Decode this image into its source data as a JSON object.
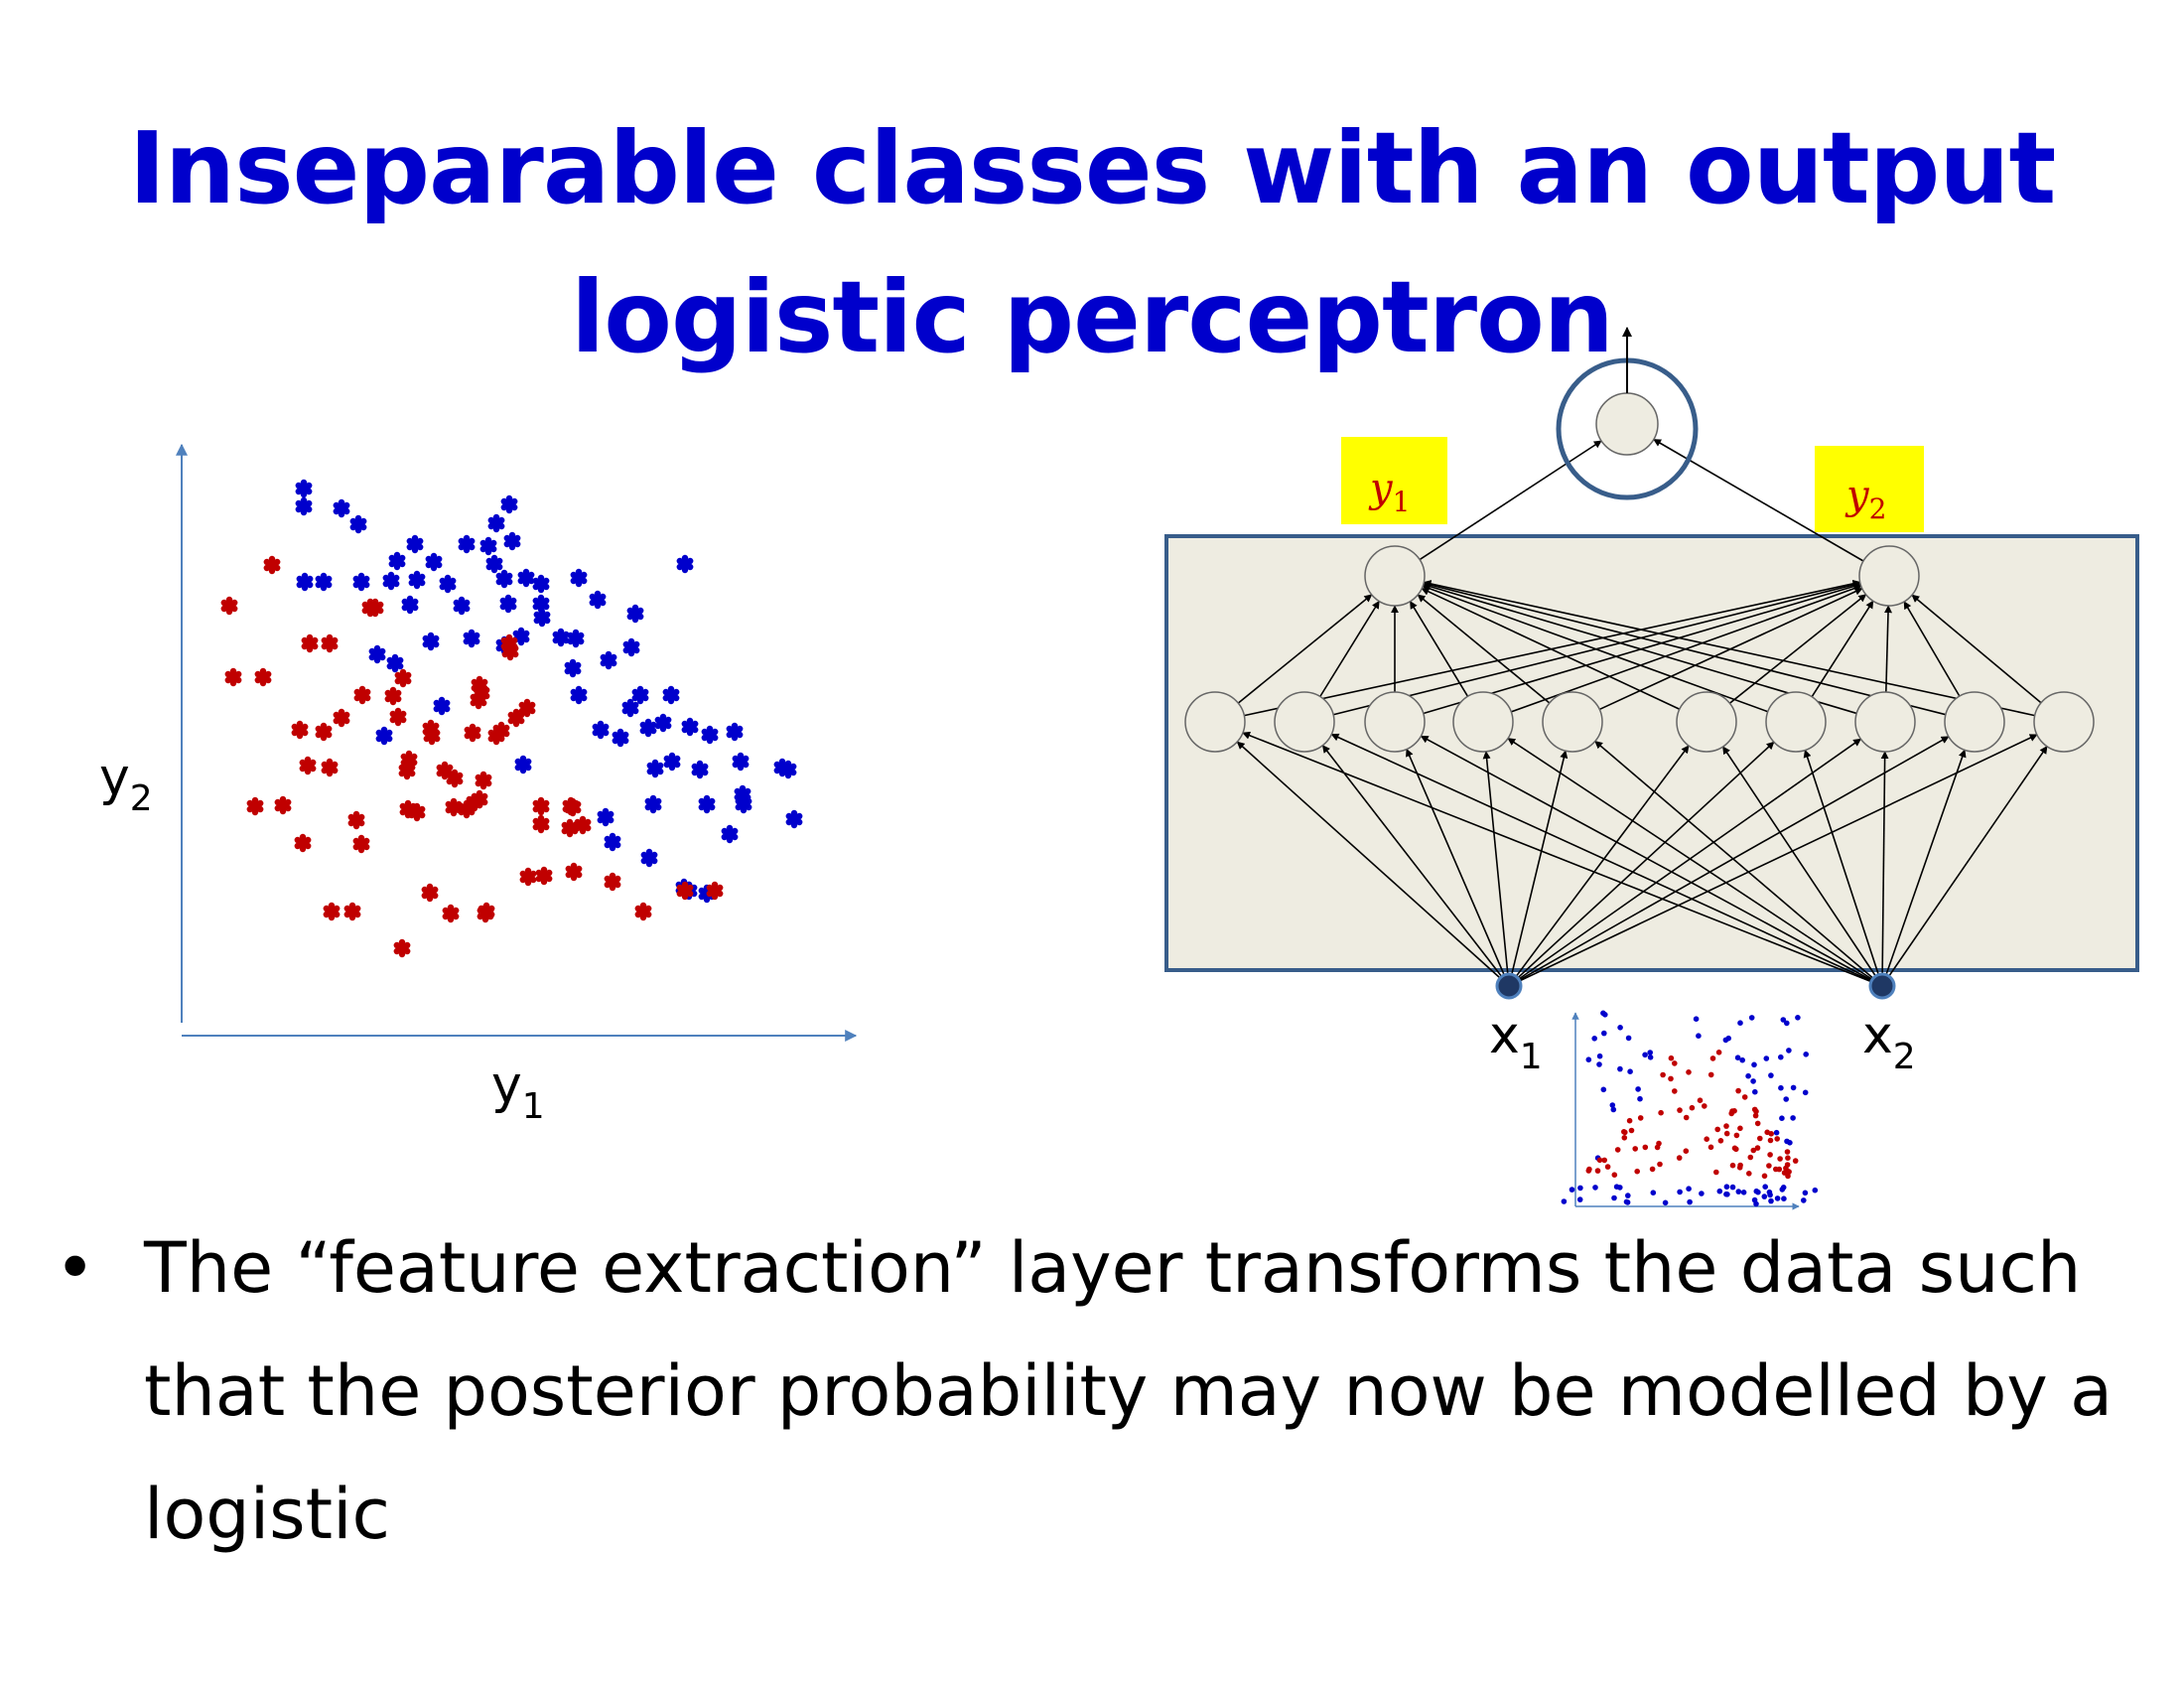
{
  "title": {
    "line1": "Inseparable classes with an output",
    "line2": "logistic perceptron"
  },
  "left_plot": {
    "xlabel_base": "y",
    "xlabel_sub": "1",
    "ylabel_base": "y",
    "ylabel_sub": "2",
    "colors": {
      "class_a": "#0000cc",
      "class_b": "#c00000",
      "axis": "#4f81bd"
    }
  },
  "network": {
    "output_label_1_base": "y",
    "output_label_1_sub": "1",
    "output_label_2_base": "y",
    "output_label_2_sub": "2",
    "input_label_1_base": "x",
    "input_label_1_sub": "1",
    "input_label_2_base": "x",
    "input_label_2_sub": "2",
    "hidden_layer_size": 10,
    "feature_layer_size": 2,
    "colors": {
      "label_highlight": "#ffff00",
      "label_text": "#c00000",
      "box_fill": "#eeece1",
      "box_border": "#385d8a"
    }
  },
  "bullets": [
    "The “feature extraction” layer transforms the data such that the posterior probability may now be modelled by a logistic"
  ]
}
